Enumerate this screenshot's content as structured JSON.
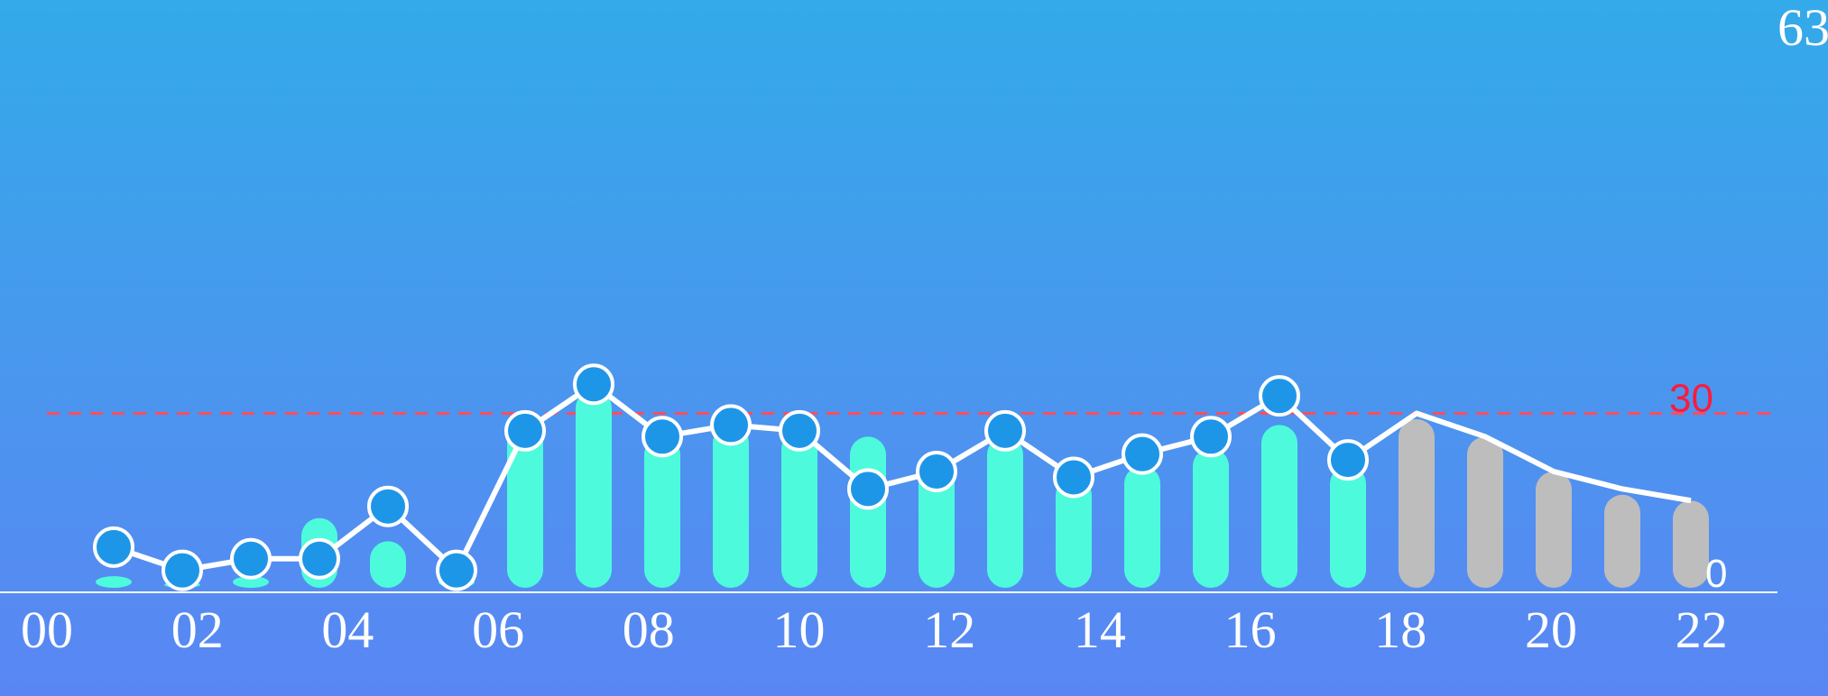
{
  "chart_data": {
    "type": "bar",
    "corner_value": "63",
    "threshold": {
      "value": 30,
      "label": "30",
      "color": "#ff4d5e"
    },
    "zero_label": "0",
    "x_ticks": [
      "00",
      "02",
      "04",
      "06",
      "08",
      "10",
      "12",
      "14",
      "16",
      "18",
      "20",
      "22"
    ],
    "bar_series": {
      "values": [
        2,
        1,
        2,
        12,
        8,
        2,
        28,
        34,
        26,
        28,
        27,
        26,
        22,
        26,
        19,
        21,
        24,
        28,
        21,
        29,
        26,
        20,
        16,
        15
      ],
      "status": [
        "active",
        "active",
        "active",
        "active",
        "active",
        "active",
        "active",
        "active",
        "active",
        "active",
        "active",
        "active",
        "active",
        "active",
        "active",
        "active",
        "active",
        "active",
        "active",
        "inactive",
        "inactive",
        "inactive",
        "inactive",
        "inactive"
      ]
    },
    "line_series": {
      "values": [
        7,
        3,
        5,
        5,
        14,
        3,
        27,
        35,
        26,
        28,
        27,
        17,
        20,
        27,
        19,
        23,
        26,
        33,
        22,
        30,
        26,
        20,
        17,
        15
      ],
      "point_shown": [
        true,
        true,
        true,
        true,
        true,
        true,
        true,
        true,
        true,
        true,
        true,
        true,
        true,
        true,
        true,
        true,
        true,
        true,
        true,
        false,
        false,
        false,
        false,
        false
      ]
    },
    "ylim": [
      0,
      63
    ],
    "grid": false,
    "colors": {
      "bar_active": "#4dfadc",
      "bar_inactive": "#bdbdbd",
      "line": "#ffffff",
      "marker_fill": "#1e96e8",
      "axis": "#ffffff"
    }
  }
}
